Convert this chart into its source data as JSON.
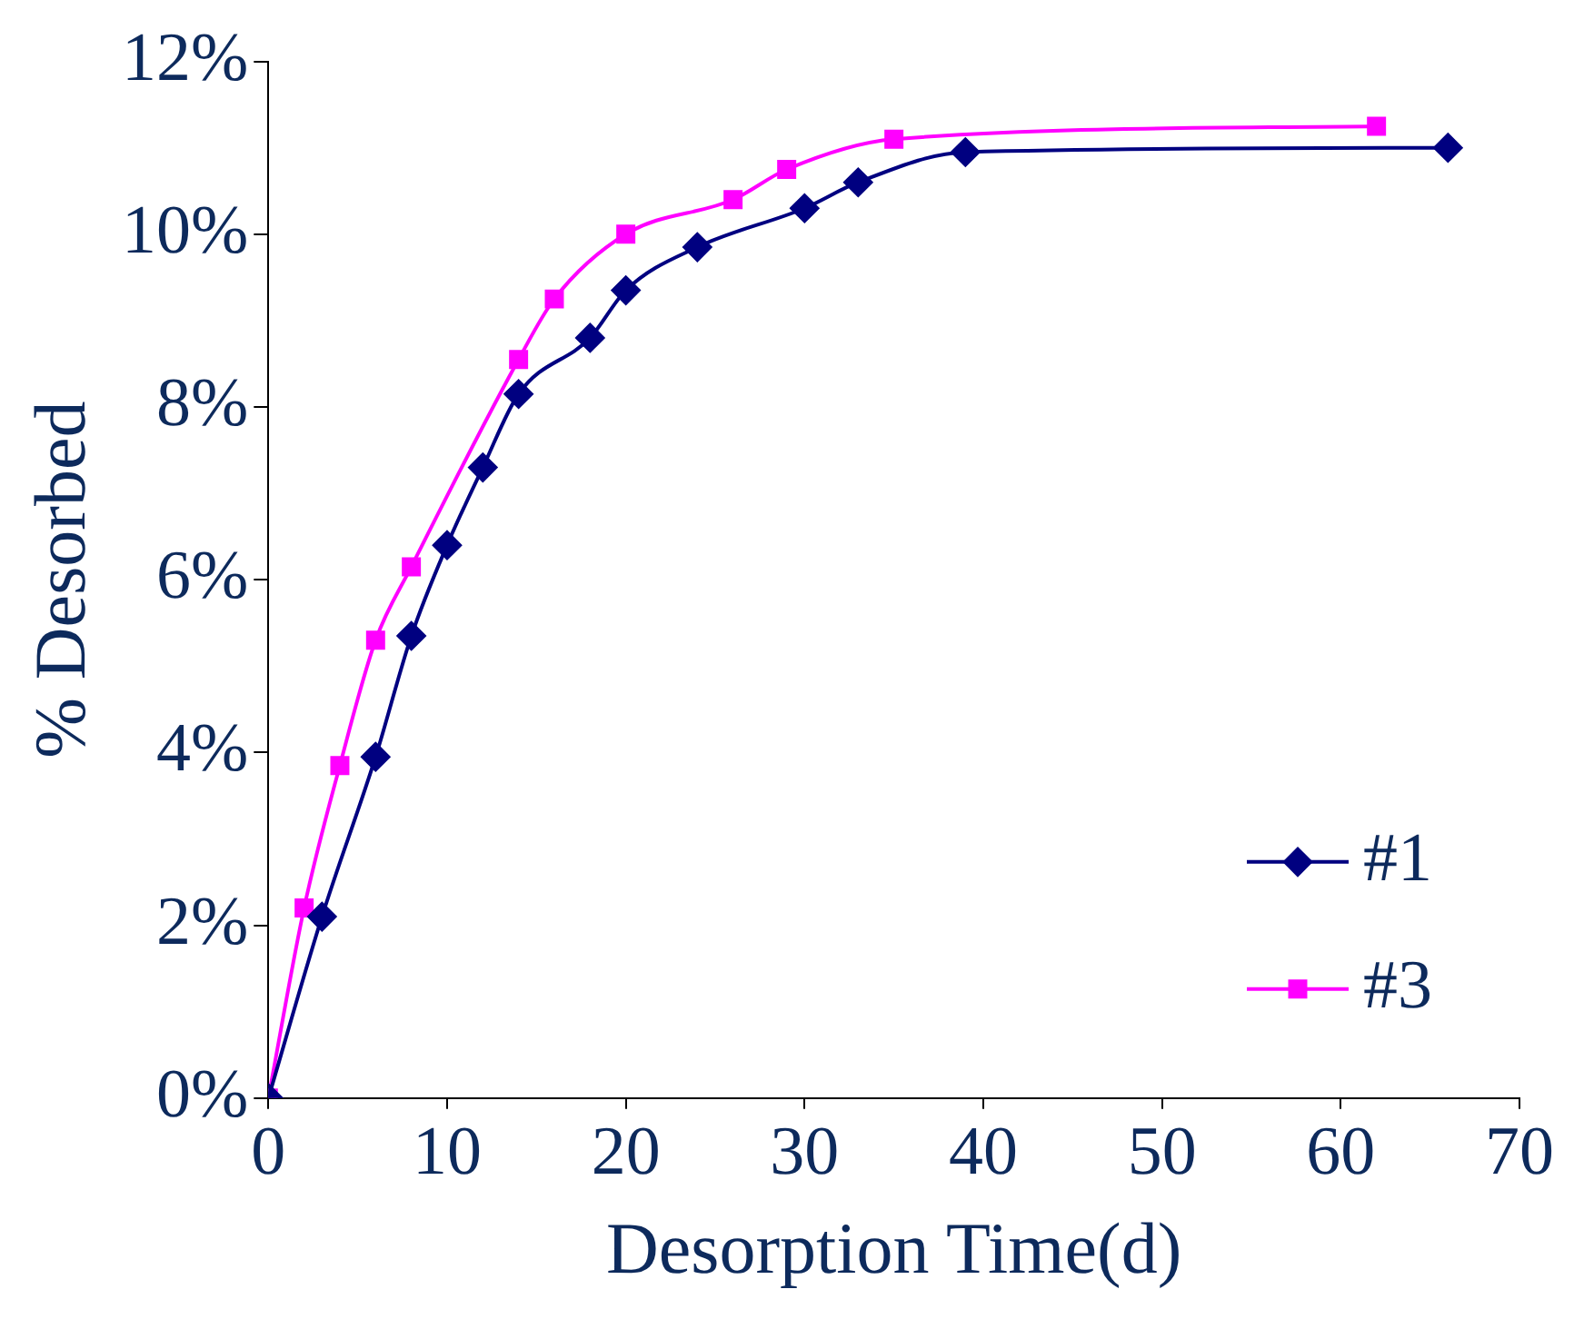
{
  "chart_data": {
    "type": "line",
    "xlabel": "Desorption Time(d)",
    "ylabel": "% Desorbed",
    "xlim": [
      0,
      70
    ],
    "xticks": [
      0,
      10,
      20,
      30,
      40,
      50,
      60,
      70
    ],
    "ylim": [
      0,
      12
    ],
    "yticks": [
      {
        "value": 0,
        "label": "0%"
      },
      {
        "value": 2,
        "label": "2%"
      },
      {
        "value": 4,
        "label": "4%"
      },
      {
        "value": 6,
        "label": "6%"
      },
      {
        "value": 8,
        "label": "8%"
      },
      {
        "value": 10,
        "label": "10%"
      },
      {
        "value": 12,
        "label": "12%"
      }
    ],
    "grid": false,
    "legend": "bottom right",
    "series": [
      {
        "name": "#1",
        "color": "#000080",
        "marker": "diamond",
        "x": [
          0,
          3,
          6,
          8,
          10,
          12,
          14,
          18,
          20,
          24,
          30,
          33,
          39,
          66
        ],
        "values": [
          0,
          2.1,
          3.95,
          5.35,
          6.4,
          7.3,
          8.15,
          8.8,
          9.35,
          9.85,
          10.3,
          10.6,
          10.95,
          11.0
        ]
      },
      {
        "name": "#3",
        "color": "#ff00ff",
        "marker": "square",
        "x": [
          0,
          2,
          4,
          6,
          8,
          14,
          16,
          20,
          26,
          29,
          35,
          62
        ],
        "values": [
          0,
          2.2,
          3.85,
          5.3,
          6.15,
          8.55,
          9.25,
          10.0,
          10.4,
          10.75,
          11.1,
          11.25
        ]
      }
    ]
  }
}
